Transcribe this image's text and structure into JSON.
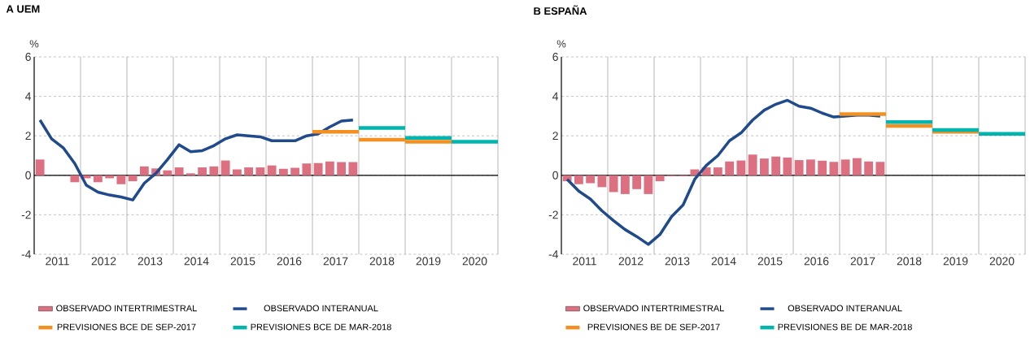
{
  "chart_data": [
    {
      "type": "bar",
      "title": "A  UEM",
      "ylabel": "%",
      "x": [
        2011.125,
        2011.375,
        2011.625,
        2011.875,
        2012.125,
        2012.375,
        2012.625,
        2012.875,
        2013.125,
        2013.375,
        2013.625,
        2013.875,
        2014.125,
        2014.375,
        2014.625,
        2014.875,
        2015.125,
        2015.375,
        2015.625,
        2015.875,
        2016.125,
        2016.375,
        2016.625,
        2016.875,
        2017.125,
        2017.375,
        2017.625,
        2017.875
      ],
      "series": [
        {
          "name": "OBSERVADO INTERTRIMESTRAL",
          "color": "#dc7080",
          "values": [
            0.8,
            0,
            0,
            -0.35,
            -0.15,
            -0.35,
            -0.15,
            -0.45,
            -0.3,
            0.45,
            0.35,
            0.25,
            0.4,
            0.1,
            0.4,
            0.45,
            0.75,
            0.3,
            0.4,
            0.4,
            0.5,
            0.33,
            0.38,
            0.6,
            0.62,
            0.7,
            0.67,
            0.67
          ]
        },
        {
          "type": "line",
          "name": "OBSERVADO INTERANUAL",
          "color": "#1f4a8c",
          "values": [
            2.8,
            1.85,
            1.4,
            0.6,
            -0.5,
            -0.85,
            -1.0,
            -1.1,
            -1.25,
            -0.4,
            0.1,
            0.8,
            1.55,
            1.2,
            1.25,
            1.5,
            1.85,
            2.05,
            2.0,
            1.95,
            1.75,
            1.75,
            1.75,
            2.0,
            2.1,
            2.45,
            2.75,
            2.8
          ]
        },
        {
          "type": "line",
          "name": "PREVISIONES BCE DE SEP-2017",
          "color": "#f39020",
          "x": [
            2017,
            2018,
            2018,
            2019,
            2019,
            2020
          ],
          "values": [
            2.2,
            2.2,
            1.8,
            1.8,
            1.7,
            1.7
          ]
        },
        {
          "type": "line",
          "name": "PREVISIONES BCE DE MAR-2018",
          "color": "#00b5ad",
          "x": [
            2018,
            2019,
            2019,
            2020,
            2020,
            2021
          ],
          "values": [
            2.4,
            2.4,
            1.9,
            1.9,
            1.7,
            1.7
          ]
        }
      ],
      "xlim": [
        2011,
        2021
      ],
      "ylim": [
        -4,
        6
      ],
      "yticks": [
        -4,
        -2,
        0,
        2,
        4,
        6
      ],
      "xticks": [
        {
          "value": 2011.5,
          "label": "2011"
        },
        {
          "value": 2012.5,
          "label": "2012"
        },
        {
          "value": 2013.5,
          "label": "2013"
        },
        {
          "value": 2014.5,
          "label": "2014"
        },
        {
          "value": 2015.5,
          "label": "2015"
        },
        {
          "value": 2016.5,
          "label": "2016"
        },
        {
          "value": 2017.5,
          "label": "2017"
        },
        {
          "value": 2018.5,
          "label": "2018"
        },
        {
          "value": 2019.5,
          "label": "2019"
        },
        {
          "value": 2020.5,
          "label": "2020"
        },
        {
          "value": 2012,
          "label": null
        },
        {
          "value": 2013,
          "label": null
        },
        {
          "value": 2014,
          "label": null
        },
        {
          "value": 2015,
          "label": null
        },
        {
          "value": 2016,
          "label": null
        },
        {
          "value": 2017,
          "label": null
        },
        {
          "value": 2018,
          "label": null
        },
        {
          "value": 2019,
          "label": null
        },
        {
          "value": 2020,
          "label": null
        },
        {
          "value": 2021,
          "label": null
        }
      ],
      "ref_lines": [
        {
          "axis": "y",
          "value": 0,
          "color": "#000000"
        }
      ],
      "grid": true,
      "legend": "bottom"
    },
    {
      "type": "bar",
      "title": "B  ESPAÑA",
      "ylabel": "%",
      "x": [
        2011.125,
        2011.375,
        2011.625,
        2011.875,
        2012.125,
        2012.375,
        2012.625,
        2012.875,
        2013.125,
        2013.375,
        2013.625,
        2013.875,
        2014.125,
        2014.375,
        2014.625,
        2014.875,
        2015.125,
        2015.375,
        2015.625,
        2015.875,
        2016.125,
        2016.375,
        2016.625,
        2016.875,
        2017.125,
        2017.375,
        2017.625,
        2017.875
      ],
      "series": [
        {
          "name": "OBSERVADO INTERTRIMESTRAL",
          "color": "#dc7080",
          "values": [
            -0.3,
            -0.45,
            -0.4,
            -0.6,
            -0.85,
            -0.95,
            -0.7,
            -0.95,
            -0.3,
            -0.05,
            -0.05,
            0.3,
            0.4,
            0.4,
            0.7,
            0.75,
            1.05,
            0.85,
            0.95,
            0.9,
            0.77,
            0.8,
            0.74,
            0.68,
            0.8,
            0.87,
            0.7,
            0.68
          ]
        },
        {
          "type": "line",
          "name": "OBSERVADO INTERANUAL",
          "color": "#1f4a8c",
          "values": [
            -0.2,
            -0.8,
            -1.2,
            -1.8,
            -2.3,
            -2.75,
            -3.1,
            -3.5,
            -3.0,
            -2.1,
            -1.5,
            -0.2,
            0.5,
            1.0,
            1.75,
            2.15,
            2.8,
            3.3,
            3.6,
            3.8,
            3.5,
            3.4,
            3.15,
            2.95,
            3.0,
            3.05,
            3.05,
            3.0
          ]
        },
        {
          "type": "line",
          "name": "PREVISIONES BE DE SEP-2017",
          "color": "#f39020",
          "x": [
            2017,
            2018,
            2018,
            2019,
            2019,
            2020
          ],
          "values": [
            3.1,
            3.1,
            2.5,
            2.5,
            2.2,
            2.2
          ]
        },
        {
          "type": "line",
          "name": "PREVISIONES BE DE MAR-2018",
          "color": "#00b5ad",
          "x": [
            2018,
            2019,
            2019,
            2020,
            2020,
            2021
          ],
          "values": [
            2.7,
            2.7,
            2.3,
            2.3,
            2.1,
            2.1
          ]
        }
      ],
      "xlim": [
        2011,
        2021
      ],
      "ylim": [
        -4,
        6
      ],
      "yticks": [
        -4,
        -2,
        0,
        2,
        4,
        6
      ],
      "xticks": [
        {
          "value": 2011.5,
          "label": "2011"
        },
        {
          "value": 2012.5,
          "label": "2012"
        },
        {
          "value": 2013.5,
          "label": "2013"
        },
        {
          "value": 2014.5,
          "label": "2014"
        },
        {
          "value": 2015.5,
          "label": "2015"
        },
        {
          "value": 2016.5,
          "label": "2016"
        },
        {
          "value": 2017.5,
          "label": "2017"
        },
        {
          "value": 2018.5,
          "label": "2018"
        },
        {
          "value": 2019.5,
          "label": "2019"
        },
        {
          "value": 2020.5,
          "label": "2020"
        },
        {
          "value": 2012,
          "label": null
        },
        {
          "value": 2013,
          "label": null
        },
        {
          "value": 2014,
          "label": null
        },
        {
          "value": 2015,
          "label": null
        },
        {
          "value": 2016,
          "label": null
        },
        {
          "value": 2017,
          "label": null
        },
        {
          "value": 2018,
          "label": null
        },
        {
          "value": 2019,
          "label": null
        },
        {
          "value": 2020,
          "label": null
        },
        {
          "value": 2021,
          "label": null
        }
      ],
      "ref_lines": [
        {
          "axis": "y",
          "value": 0,
          "color": "#000000"
        }
      ],
      "grid": true,
      "legend": "bottom"
    }
  ]
}
